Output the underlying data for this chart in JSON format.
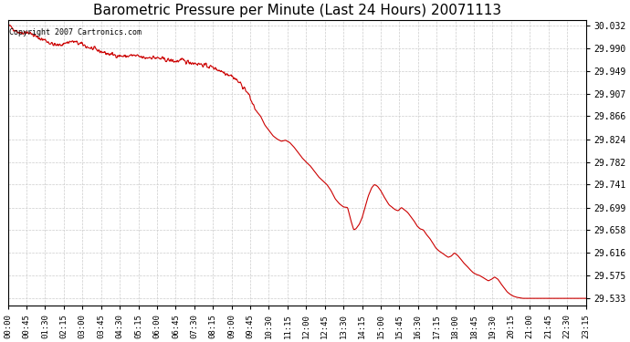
{
  "title": "Barometric Pressure per Minute (Last 24 Hours) 20071113",
  "copyright_text": "Copyright 2007 Cartronics.com",
  "line_color": "#cc0000",
  "bg_color": "#ffffff",
  "grid_color": "#cccccc",
  "yticks": [
    29.533,
    29.575,
    29.616,
    29.658,
    29.699,
    29.741,
    29.782,
    29.824,
    29.866,
    29.907,
    29.949,
    29.99,
    30.032
  ],
  "xtick_labels": [
    "00:00",
    "00:45",
    "01:30",
    "02:15",
    "03:00",
    "03:45",
    "04:30",
    "05:15",
    "06:00",
    "06:45",
    "07:30",
    "08:15",
    "09:00",
    "09:45",
    "10:30",
    "11:15",
    "12:00",
    "12:45",
    "13:30",
    "14:15",
    "15:00",
    "15:45",
    "16:30",
    "17:15",
    "18:00",
    "18:45",
    "19:30",
    "20:15",
    "21:00",
    "21:45",
    "22:30",
    "23:15"
  ],
  "detailed_waypoints_x": [
    0,
    10,
    20,
    30,
    45,
    60,
    70,
    80,
    90,
    100,
    110,
    120,
    130,
    140,
    150,
    160,
    170,
    180,
    190,
    200,
    210,
    220,
    230,
    240,
    255,
    270,
    285,
    300,
    315,
    330,
    345,
    360,
    375,
    390,
    405,
    420,
    435,
    450,
    465,
    480,
    495,
    510,
    525,
    540,
    555,
    570,
    580,
    590,
    600,
    610,
    620,
    630,
    640,
    650,
    660,
    670,
    680,
    690,
    700,
    710,
    720,
    730,
    740,
    750,
    760,
    770,
    780,
    790,
    800,
    810,
    820,
    828,
    835,
    840,
    848,
    855,
    862,
    870,
    878,
    885,
    892,
    900,
    907,
    915,
    920,
    928,
    935,
    942,
    950,
    957,
    965,
    973,
    980,
    988,
    995,
    1003,
    1010,
    1018,
    1025,
    1033,
    1040,
    1048,
    1055,
    1063,
    1070,
    1078,
    1085,
    1093,
    1100,
    1108,
    1115,
    1123,
    1130,
    1138,
    1145,
    1153,
    1160,
    1168,
    1175,
    1183,
    1190,
    1198,
    1205,
    1213,
    1220,
    1228,
    1235,
    1243,
    1260,
    1290,
    1320,
    1350,
    1380,
    1395
  ],
  "detailed_waypoints_y": [
    30.032,
    30.028,
    30.022,
    30.018,
    30.02,
    30.015,
    30.01,
    30.007,
    30.005,
    30.0,
    29.997,
    29.995,
    29.997,
    30.0,
    30.002,
    30.002,
    29.999,
    29.997,
    29.993,
    29.99,
    29.988,
    29.985,
    29.983,
    29.98,
    29.978,
    29.976,
    29.975,
    29.977,
    29.975,
    29.972,
    29.974,
    29.972,
    29.97,
    29.968,
    29.966,
    29.968,
    29.965,
    29.963,
    29.961,
    29.958,
    29.955,
    29.95,
    29.945,
    29.94,
    29.93,
    29.918,
    29.907,
    29.89,
    29.875,
    29.866,
    29.85,
    29.84,
    29.83,
    29.824,
    29.82,
    29.822,
    29.818,
    29.81,
    29.8,
    29.79,
    29.782,
    29.775,
    29.765,
    29.755,
    29.748,
    29.741,
    29.73,
    29.715,
    29.706,
    29.7,
    29.699,
    29.675,
    29.658,
    29.66,
    29.668,
    29.68,
    29.699,
    29.72,
    29.735,
    29.741,
    29.738,
    29.73,
    29.72,
    29.71,
    29.704,
    29.699,
    29.695,
    29.693,
    29.699,
    29.695,
    29.69,
    29.682,
    29.675,
    29.665,
    29.66,
    29.658,
    29.65,
    29.643,
    29.635,
    29.625,
    29.62,
    29.616,
    29.612,
    29.608,
    29.61,
    29.616,
    29.612,
    29.605,
    29.598,
    29.592,
    29.586,
    29.58,
    29.577,
    29.575,
    29.572,
    29.568,
    29.565,
    29.568,
    29.572,
    29.568,
    29.56,
    29.552,
    29.545,
    29.54,
    29.537,
    29.535,
    29.534,
    29.533,
    29.533,
    29.533,
    29.533,
    29.533,
    29.533,
    29.533
  ],
  "ylim_min": 29.52,
  "ylim_max": 30.042,
  "xlim_min": 0,
  "xlim_max": 1395
}
